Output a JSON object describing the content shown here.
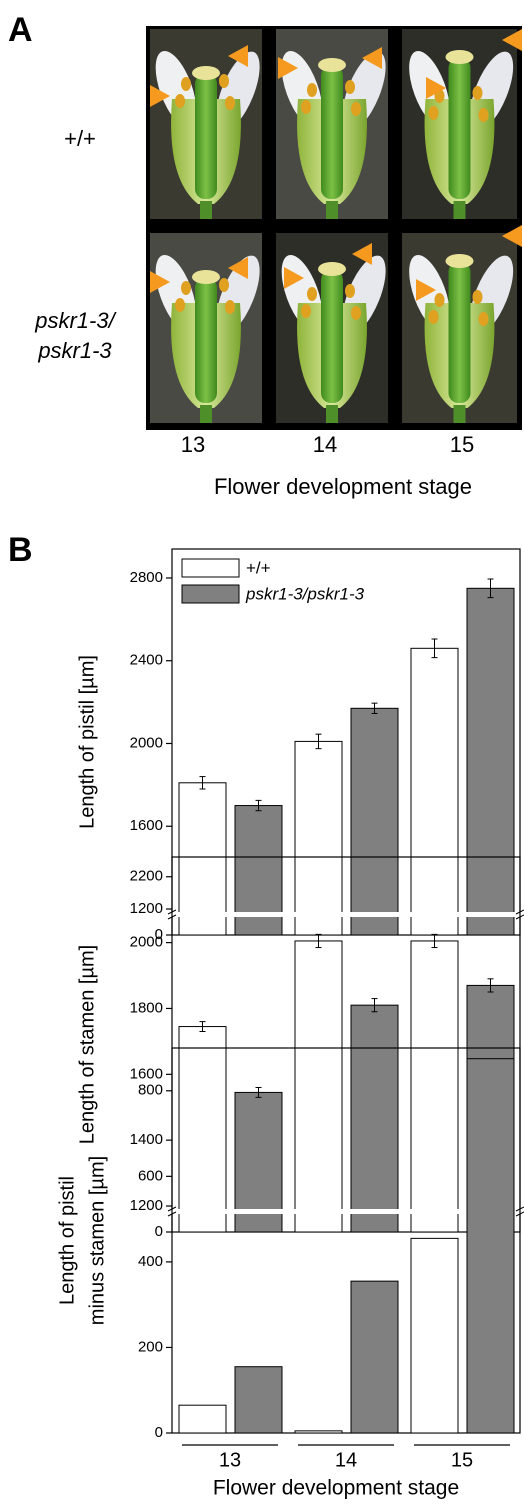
{
  "figure": {
    "panel_a": {
      "label": "A",
      "row_labels": [
        [
          "+/+"
        ],
        [
          "pskr1-3/",
          "pskr1-3"
        ]
      ],
      "column_labels": [
        "13",
        "14",
        "15"
      ],
      "xlabel": "Flower development stage"
    },
    "panel_b": {
      "label": "B"
    }
  },
  "chart_data": [
    {
      "type": "bar",
      "ylabel": [
        "Length of pistil [µm]"
      ],
      "ylim": [
        0,
        2940
      ],
      "ybreak": [
        0,
        1200
      ],
      "yticks": [
        0,
        1200,
        1600,
        2000,
        2400,
        2800
      ],
      "legend": "upper left",
      "series": [
        {
          "name": "+/+",
          "color": "#ffffff",
          "values": [
            1810,
            2010,
            2460
          ],
          "errors": [
            30,
            35,
            45
          ]
        },
        {
          "name": "pskr1-3/pskr1-3",
          "color": "#808080",
          "values": [
            1700,
            2170,
            2750
          ],
          "errors": [
            25,
            25,
            45
          ]
        }
      ]
    },
    {
      "type": "bar",
      "ylabel": [
        "Length of stamen [µm]"
      ],
      "ylim": [
        0,
        2260
      ],
      "ybreak": [
        0,
        1200
      ],
      "yticks": [
        0,
        1200,
        1400,
        1600,
        1800,
        2000,
        2200
      ],
      "series": [
        {
          "color": "#ffffff",
          "values": [
            1745,
            2005,
            2005
          ],
          "errors": [
            15,
            20,
            20
          ]
        },
        {
          "color": "#808080",
          "values": [
            1545,
            1810,
            1870
          ],
          "errors": [
            15,
            20,
            20
          ]
        }
      ]
    },
    {
      "type": "bar",
      "ylabel": [
        "Length of pistil",
        "minus stamen [µm]"
      ],
      "ylim": [
        0,
        900
      ],
      "yticks": [
        0,
        200,
        400,
        600,
        800
      ],
      "categories": [
        "13",
        "14",
        "15"
      ],
      "xlabel": "Flower development stage",
      "series": [
        {
          "color": "#ffffff",
          "values": [
            65,
            5,
            455
          ]
        },
        {
          "color": "#808080",
          "values": [
            155,
            355,
            875
          ]
        }
      ]
    }
  ]
}
